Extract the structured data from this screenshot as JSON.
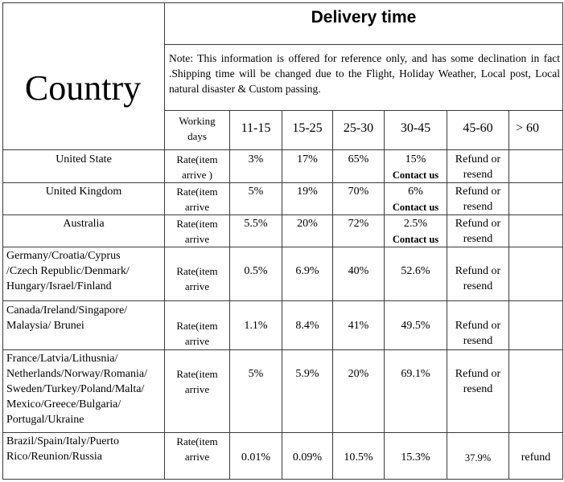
{
  "header": {
    "country_label": "Country",
    "delivery_title": "Delivery time",
    "note": "Note: This information is offered for reference only, and has some declination in fact .Shipping time will be changed due to the Flight, Holiday Weather, Local post, Local natural disaster & Custom passing."
  },
  "columns": {
    "working_days_line1": "Working",
    "working_days_line2": "days",
    "ranges": [
      "11-15",
      "15-25",
      "25-30",
      "30-45",
      "45-60",
      "> 60"
    ]
  },
  "rows": [
    {
      "country": [
        "United State"
      ],
      "rate": [
        "Rate(item",
        "arrive )"
      ],
      "values": [
        "3%",
        "17%",
        "65%",
        "15%",
        ""
      ],
      "contact": "Contact us",
      "refund": [
        "Refund or",
        "resend"
      ],
      "over60": ""
    },
    {
      "country": [
        "United Kingdom"
      ],
      "rate": [
        "Rate(item",
        "arrive"
      ],
      "values": [
        "5%",
        "19%",
        "70%",
        "6%",
        ""
      ],
      "contact": "Contact us",
      "refund": [
        "Refund or",
        "resend"
      ],
      "over60": ""
    },
    {
      "country": [
        "Australia"
      ],
      "rate": [
        "Rate(item",
        "arrive"
      ],
      "values": [
        "5.5%",
        "20%",
        "72%",
        "2.5%",
        ""
      ],
      "contact": "Contact us",
      "refund": [
        "Refund or",
        "resend"
      ],
      "over60": ""
    },
    {
      "country": [
        "Germany/Croatia/Cyprus",
        "/Czech Republic/Denmark/",
        "Hungary/Israel/Finland"
      ],
      "rate": [
        "Rate(item",
        "arrive"
      ],
      "values": [
        "0.5%",
        "6.9%",
        "40%",
        "52.6%"
      ],
      "refund": [
        "Refund or",
        "resend"
      ],
      "over60": ""
    },
    {
      "country": [
        "Canada/Ireland/Singapore/",
        "Malaysia/ Brunei"
      ],
      "rate": [
        "Rate(item",
        "arrive"
      ],
      "values": [
        "1.1%",
        "8.4%",
        "41%",
        "49.5%"
      ],
      "refund": [
        "Refund or",
        "resend"
      ],
      "over60": ""
    },
    {
      "country": [
        "France/Latvia/Lithusnia/",
        "Netherlands/Norway/Romania/",
        "Sweden/Turkey/Poland/Malta/",
        "Mexico/Greece/Bulgaria/",
        "Portugal/Ukraine"
      ],
      "rate": [
        "Rate(item",
        "arrive"
      ],
      "values": [
        "5%",
        "5.9%",
        "20%",
        "69.1%"
      ],
      "refund": [
        "Refund or",
        "resend"
      ],
      "over60": ""
    },
    {
      "country": [
        "Brazil/Spain/Italy/Puerto",
        "Rico/Reunion/Russia"
      ],
      "rate": [
        "Rate(item",
        "arrive"
      ],
      "values": [
        "0.01%",
        "0.09%",
        "10.5%",
        "15.3%"
      ],
      "refund_single": "37.9%",
      "over60": "refund"
    }
  ]
}
